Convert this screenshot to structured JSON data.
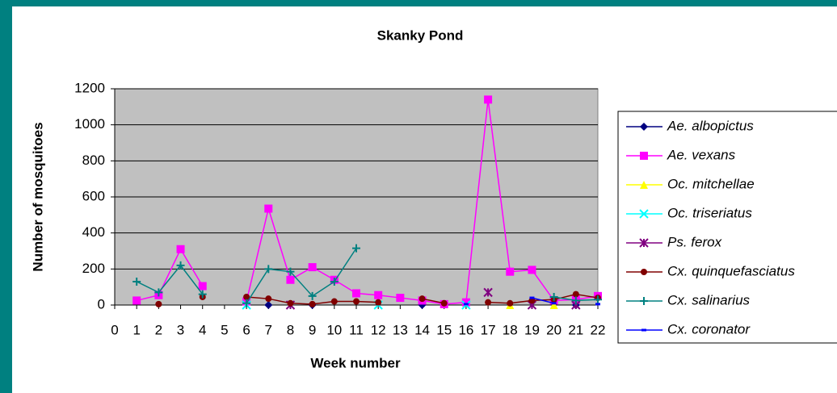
{
  "chart_data": {
    "type": "line",
    "title": "Skanky Pond",
    "x_label": "Week number",
    "y_label": "Number of mosquitoes",
    "x": [
      0,
      1,
      2,
      3,
      4,
      5,
      6,
      7,
      8,
      9,
      10,
      11,
      12,
      13,
      14,
      15,
      16,
      17,
      18,
      19,
      20,
      21,
      22
    ],
    "xlim": [
      0,
      22
    ],
    "xticks": [
      0,
      1,
      2,
      3,
      4,
      5,
      6,
      7,
      8,
      9,
      10,
      11,
      12,
      13,
      14,
      15,
      16,
      17,
      18,
      19,
      20,
      21,
      22
    ],
    "ylim": [
      0,
      1200
    ],
    "yticks": [
      0,
      200,
      400,
      600,
      800,
      1000,
      1200
    ],
    "grid": true,
    "legend": "right",
    "series": [
      {
        "name": "Ae. albopictus",
        "color": "#000080",
        "marker": "diamond",
        "values": [
          null,
          null,
          null,
          null,
          null,
          null,
          null,
          0,
          null,
          0,
          null,
          null,
          null,
          null,
          0,
          null,
          null,
          null,
          null,
          null,
          null,
          0,
          null
        ]
      },
      {
        "name": "Ae. vexans",
        "color": "#ff00ff",
        "marker": "square",
        "values": [
          null,
          25,
          55,
          310,
          105,
          null,
          20,
          535,
          140,
          210,
          140,
          65,
          55,
          40,
          25,
          5,
          15,
          1140,
          185,
          195,
          25,
          30,
          50
        ]
      },
      {
        "name": "Oc. mitchellae",
        "color": "#ffff00",
        "marker": "triangle",
        "values": [
          null,
          null,
          null,
          null,
          null,
          null,
          null,
          null,
          null,
          null,
          null,
          null,
          null,
          null,
          null,
          null,
          null,
          null,
          0,
          null,
          0,
          null,
          null
        ]
      },
      {
        "name": "Oc. triseriatus",
        "color": "#00ffff",
        "marker": "x",
        "values": [
          null,
          null,
          null,
          null,
          null,
          null,
          0,
          null,
          null,
          null,
          null,
          null,
          0,
          null,
          null,
          null,
          0,
          null,
          null,
          null,
          null,
          null,
          null
        ]
      },
      {
        "name": "Ps. ferox",
        "color": "#800080",
        "marker": "asterisk",
        "values": [
          null,
          null,
          null,
          null,
          null,
          null,
          null,
          null,
          0,
          null,
          null,
          null,
          null,
          null,
          null,
          null,
          null,
          70,
          null,
          0,
          null,
          0,
          null
        ]
      },
      {
        "name": "Cx. quinquefasciatus",
        "color": "#800000",
        "marker": "circle",
        "values": [
          null,
          null,
          5,
          null,
          45,
          null,
          45,
          35,
          10,
          5,
          20,
          20,
          15,
          null,
          35,
          10,
          null,
          15,
          10,
          25,
          30,
          60,
          40
        ]
      },
      {
        "name": "Cx. salinarius",
        "color": "#008080",
        "marker": "plus",
        "values": [
          null,
          130,
          70,
          220,
          60,
          null,
          10,
          200,
          185,
          50,
          130,
          315,
          null,
          null,
          null,
          null,
          null,
          null,
          null,
          null,
          45,
          25,
          30
        ]
      },
      {
        "name": "Cx. coronator",
        "color": "#0000ff",
        "marker": "dash",
        "values": [
          null,
          null,
          null,
          null,
          null,
          null,
          null,
          null,
          null,
          null,
          null,
          null,
          null,
          null,
          null,
          null,
          5,
          null,
          null,
          40,
          10,
          null,
          5
        ]
      }
    ]
  }
}
